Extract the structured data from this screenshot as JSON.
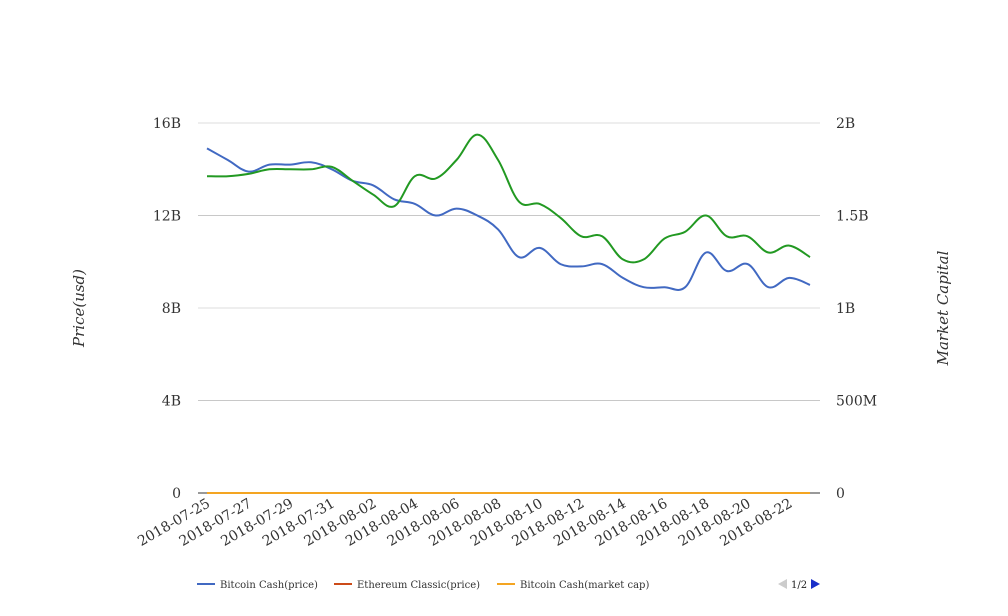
{
  "chart_data": {
    "type": "line",
    "x": [
      "2018-07-25",
      "2018-07-26",
      "2018-07-27",
      "2018-07-28",
      "2018-07-29",
      "2018-07-30",
      "2018-07-31",
      "2018-08-01",
      "2018-08-02",
      "2018-08-03",
      "2018-08-04",
      "2018-08-05",
      "2018-08-06",
      "2018-08-07",
      "2018-08-08",
      "2018-08-09",
      "2018-08-10",
      "2018-08-11",
      "2018-08-12",
      "2018-08-13",
      "2018-08-14",
      "2018-08-15",
      "2018-08-16",
      "2018-08-17",
      "2018-08-18",
      "2018-08-19",
      "2018-08-20",
      "2018-08-21",
      "2018-08-22",
      "2018-08-23"
    ],
    "x_tick_labels": [
      "2018-07-25",
      "2018-07-27",
      "2018-07-29",
      "2018-07-31",
      "2018-08-02",
      "2018-08-04",
      "2018-08-06",
      "2018-08-08",
      "2018-08-10",
      "2018-08-12",
      "2018-08-14",
      "2018-08-16",
      "2018-08-18",
      "2018-08-20",
      "2018-08-22"
    ],
    "ylabel": "Price(usd)",
    "y2label": "Market Capital",
    "ylim": [
      0,
      16000000000
    ],
    "y2lim": [
      0,
      2000000000
    ],
    "y_tick_labels": [
      "0",
      "4B",
      "8B",
      "12B",
      "16B"
    ],
    "y2_tick_labels": [
      "0",
      "500M",
      "1B",
      "1.5B",
      "2B"
    ],
    "grid": true,
    "legend_position": "bottom-left",
    "series": [
      {
        "name": "Bitcoin Cash(price)",
        "axis": "left",
        "color": "#4169c2",
        "values": [
          14900000000,
          14400000000,
          13900000000,
          14200000000,
          14200000000,
          14300000000,
          14000000000,
          13500000000,
          13300000000,
          12700000000,
          12500000000,
          12000000000,
          12300000000,
          12000000000,
          11400000000,
          10200000000,
          10600000000,
          9900000000,
          9800000000,
          9900000000,
          9300000000,
          8900000000,
          8900000000,
          8900000000,
          10400000000,
          9600000000,
          9900000000,
          8900000000,
          9300000000,
          9000000000
        ]
      },
      {
        "name": "Ethereum Classic(price)",
        "axis": "left",
        "color": "#cc4b19",
        "values": [
          0,
          0,
          0,
          0,
          0,
          0,
          0,
          0,
          0,
          0,
          0,
          0,
          0,
          0,
          0,
          0,
          0,
          0,
          0,
          0,
          0,
          0,
          0,
          0,
          0,
          0,
          0,
          0,
          0,
          0
        ]
      },
      {
        "name": "Bitcoin Cash(market cap)",
        "axis": "right",
        "color": "#f4a522",
        "values": [
          0,
          0,
          0,
          0,
          0,
          0,
          0,
          0,
          0,
          0,
          0,
          0,
          0,
          0,
          0,
          0,
          0,
          0,
          0,
          0,
          0,
          0,
          0,
          0,
          0,
          0,
          0,
          0,
          0,
          0
        ]
      },
      {
        "axis": "left",
        "color": "#229922",
        "values": [
          13700000000,
          13700000000,
          13800000000,
          14000000000,
          14000000000,
          14000000000,
          14100000000,
          13500000000,
          12900000000,
          12400000000,
          13700000000,
          13600000000,
          14400000000,
          15500000000,
          14400000000,
          12600000000,
          12500000000,
          11900000000,
          11100000000,
          11100000000,
          10100000000,
          10100000000,
          11000000000,
          11300000000,
          12000000000,
          11100000000,
          11100000000,
          10400000000,
          10700000000,
          10200000000
        ]
      }
    ],
    "pager": {
      "label": "1/2"
    }
  }
}
